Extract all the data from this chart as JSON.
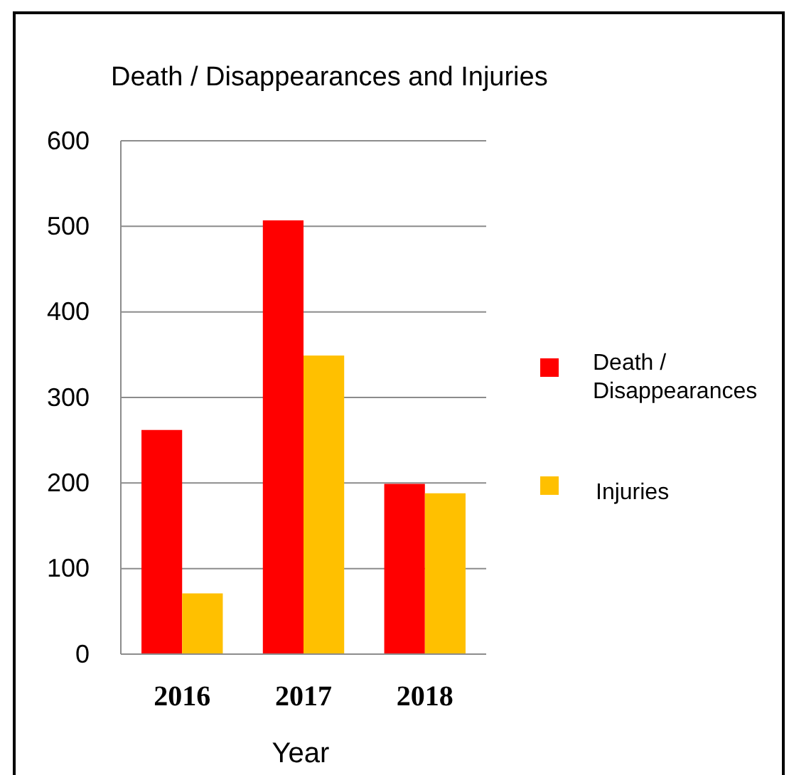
{
  "chart_data": {
    "type": "bar",
    "title": "Death / Disappearances and Injuries",
    "xlabel": "Year",
    "categories": [
      "2016",
      "2017",
      "2018"
    ],
    "series": [
      {
        "name": "Death / Disappearances",
        "color": "#ff0000",
        "values": [
          262,
          507,
          199
        ]
      },
      {
        "name": "Injuries",
        "color": "#ffc000",
        "values": [
          71,
          349,
          188
        ]
      }
    ],
    "ylim": [
      0,
      600
    ],
    "yticks": [
      0,
      100,
      200,
      300,
      400,
      500,
      600
    ],
    "grid": "y",
    "legend": "right"
  }
}
